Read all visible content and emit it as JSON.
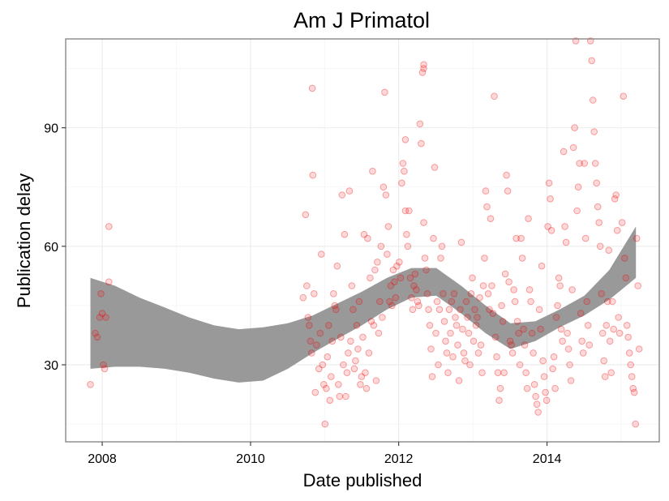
{
  "chart_data": {
    "type": "scatter",
    "title": "Am J Primatol",
    "xlabel": "Date published",
    "ylabel": "Publication delay",
    "xlim": [
      "2007-07-05",
      "2015-07-08"
    ],
    "ylim": [
      10.5,
      112.5
    ],
    "x_ticks": [
      "2008",
      "2010",
      "2012",
      "2014"
    ],
    "y_ticks": [
      "30",
      "60",
      "90"
    ],
    "grid": true,
    "point_color": "#ff0000",
    "band_color": "#999999",
    "points": [
      {
        "x": "2007-11-04",
        "y": 25
      },
      {
        "x": "2007-11-28",
        "y": 38
      },
      {
        "x": "2007-12-08",
        "y": 37
      },
      {
        "x": "2007-12-20",
        "y": 42
      },
      {
        "x": "2007-12-26",
        "y": 48
      },
      {
        "x": "2008-01-01",
        "y": 43
      },
      {
        "x": "2008-01-07",
        "y": 30
      },
      {
        "x": "2008-01-13",
        "y": 29
      },
      {
        "x": "2008-01-19",
        "y": 42
      },
      {
        "x": "2008-02-03",
        "y": 51
      },
      {
        "x": "2008-02-03",
        "y": 65
      },
      {
        "x": "2010-09-17",
        "y": 47
      },
      {
        "x": "2010-09-29",
        "y": 68
      },
      {
        "x": "2010-10-05",
        "y": 50
      },
      {
        "x": "2010-10-11",
        "y": 42
      },
      {
        "x": "2010-10-17",
        "y": 40
      },
      {
        "x": "2010-10-23",
        "y": 36
      },
      {
        "x": "2010-10-29",
        "y": 33
      },
      {
        "x": "2010-11-01",
        "y": 100
      },
      {
        "x": "2010-11-04",
        "y": 78
      },
      {
        "x": "2010-11-10",
        "y": 48
      },
      {
        "x": "2010-11-16",
        "y": 23
      },
      {
        "x": "2010-11-22",
        "y": 35
      },
      {
        "x": "2010-12-04",
        "y": 29
      },
      {
        "x": "2010-12-10",
        "y": 38
      },
      {
        "x": "2010-12-16",
        "y": 58
      },
      {
        "x": "2010-12-22",
        "y": 30
      },
      {
        "x": "2010-12-28",
        "y": 25
      },
      {
        "x": "2011-01-03",
        "y": 15
      },
      {
        "x": "2011-01-09",
        "y": 24
      },
      {
        "x": "2011-01-15",
        "y": 32
      },
      {
        "x": "2011-01-21",
        "y": 40
      },
      {
        "x": "2011-01-27",
        "y": 21
      },
      {
        "x": "2011-02-02",
        "y": 27
      },
      {
        "x": "2011-02-08",
        "y": 36
      },
      {
        "x": "2011-02-14",
        "y": 48
      },
      {
        "x": "2011-02-20",
        "y": 45
      },
      {
        "x": "2011-02-26",
        "y": 44
      },
      {
        "x": "2011-03-04",
        "y": 55
      },
      {
        "x": "2011-03-10",
        "y": 25
      },
      {
        "x": "2011-03-16",
        "y": 22
      },
      {
        "x": "2011-03-22",
        "y": 37
      },
      {
        "x": "2011-03-28",
        "y": 73
      },
      {
        "x": "2011-04-03",
        "y": 30
      },
      {
        "x": "2011-04-09",
        "y": 63
      },
      {
        "x": "2011-04-15",
        "y": 22
      },
      {
        "x": "2011-04-21",
        "y": 28
      },
      {
        "x": "2011-04-27",
        "y": 33
      },
      {
        "x": "2011-05-03",
        "y": 74
      },
      {
        "x": "2011-05-09",
        "y": 36
      },
      {
        "x": "2011-05-15",
        "y": 50
      },
      {
        "x": "2011-05-21",
        "y": 44
      },
      {
        "x": "2011-05-27",
        "y": 29
      },
      {
        "x": "2011-06-02",
        "y": 31
      },
      {
        "x": "2011-06-08",
        "y": 40
      },
      {
        "x": "2011-06-14",
        "y": 34
      },
      {
        "x": "2011-06-20",
        "y": 46
      },
      {
        "x": "2011-06-26",
        "y": 25
      },
      {
        "x": "2011-07-02",
        "y": 27
      },
      {
        "x": "2011-07-08",
        "y": 37
      },
      {
        "x": "2011-07-14",
        "y": 63
      },
      {
        "x": "2011-07-20",
        "y": 28
      },
      {
        "x": "2011-07-26",
        "y": 24
      },
      {
        "x": "2011-08-01",
        "y": 62
      },
      {
        "x": "2011-08-07",
        "y": 33
      },
      {
        "x": "2011-08-13",
        "y": 52
      },
      {
        "x": "2011-08-19",
        "y": 41
      },
      {
        "x": "2011-08-25",
        "y": 79
      },
      {
        "x": "2011-08-31",
        "y": 40
      },
      {
        "x": "2011-09-06",
        "y": 54
      },
      {
        "x": "2011-09-12",
        "y": 26
      },
      {
        "x": "2011-09-18",
        "y": 56
      },
      {
        "x": "2011-09-24",
        "y": 38
      },
      {
        "x": "2011-09-30",
        "y": 46
      },
      {
        "x": "2011-10-06",
        "y": 60
      },
      {
        "x": "2011-10-12",
        "y": 42
      },
      {
        "x": "2011-10-18",
        "y": 75
      },
      {
        "x": "2011-10-24",
        "y": 99
      },
      {
        "x": "2011-10-30",
        "y": 73
      },
      {
        "x": "2011-11-05",
        "y": 58
      },
      {
        "x": "2011-11-11",
        "y": 65
      },
      {
        "x": "2011-11-17",
        "y": 46
      },
      {
        "x": "2011-11-23",
        "y": 50
      },
      {
        "x": "2011-11-29",
        "y": 45
      },
      {
        "x": "2011-12-05",
        "y": 54
      },
      {
        "x": "2011-12-11",
        "y": 51
      },
      {
        "x": "2011-12-17",
        "y": 47
      },
      {
        "x": "2011-12-23",
        "y": 55
      },
      {
        "x": "2012-01-04",
        "y": 56
      },
      {
        "x": "2012-01-10",
        "y": 52
      },
      {
        "x": "2012-01-16",
        "y": 76
      },
      {
        "x": "2012-01-22",
        "y": 81
      },
      {
        "x": "2012-01-28",
        "y": 79
      },
      {
        "x": "2012-02-03",
        "y": 69
      },
      {
        "x": "2012-02-03",
        "y": 87
      },
      {
        "x": "2012-02-09",
        "y": 63
      },
      {
        "x": "2012-02-15",
        "y": 60
      },
      {
        "x": "2012-02-21",
        "y": 69
      },
      {
        "x": "2012-02-27",
        "y": 52
      },
      {
        "x": "2012-03-04",
        "y": 47
      },
      {
        "x": "2012-03-10",
        "y": 44
      },
      {
        "x": "2012-03-16",
        "y": 50
      },
      {
        "x": "2012-03-22",
        "y": 53
      },
      {
        "x": "2012-03-28",
        "y": 49
      },
      {
        "x": "2012-04-03",
        "y": 46
      },
      {
        "x": "2012-04-09",
        "y": 45
      },
      {
        "x": "2012-04-15",
        "y": 91
      },
      {
        "x": "2012-04-21",
        "y": 86
      },
      {
        "x": "2012-04-27",
        "y": 104
      },
      {
        "x": "2012-05-03",
        "y": 106
      },
      {
        "x": "2012-05-03",
        "y": 105
      },
      {
        "x": "2012-05-03",
        "y": 66
      },
      {
        "x": "2012-05-09",
        "y": 57
      },
      {
        "x": "2012-05-15",
        "y": 54
      },
      {
        "x": "2012-05-21",
        "y": 48
      },
      {
        "x": "2012-05-27",
        "y": 44
      },
      {
        "x": "2012-06-02",
        "y": 40
      },
      {
        "x": "2012-06-08",
        "y": 34
      },
      {
        "x": "2012-06-14",
        "y": 27
      },
      {
        "x": "2012-06-20",
        "y": 62
      },
      {
        "x": "2012-06-26",
        "y": 80
      },
      {
        "x": "2012-07-02",
        "y": 38
      },
      {
        "x": "2012-07-08",
        "y": 46
      },
      {
        "x": "2012-07-14",
        "y": 30
      },
      {
        "x": "2012-07-20",
        "y": 44
      },
      {
        "x": "2012-07-26",
        "y": 57
      },
      {
        "x": "2012-08-01",
        "y": 60
      },
      {
        "x": "2012-08-07",
        "y": 48
      },
      {
        "x": "2012-08-13",
        "y": 41
      },
      {
        "x": "2012-08-19",
        "y": 36
      },
      {
        "x": "2012-08-25",
        "y": 33
      },
      {
        "x": "2012-08-31",
        "y": 28
      },
      {
        "x": "2012-09-06",
        "y": 44
      },
      {
        "x": "2012-09-12",
        "y": 38
      },
      {
        "x": "2012-09-18",
        "y": 46
      },
      {
        "x": "2012-09-24",
        "y": 32
      },
      {
        "x": "2012-09-30",
        "y": 48
      },
      {
        "x": "2012-10-06",
        "y": 42
      },
      {
        "x": "2012-10-12",
        "y": 40
      },
      {
        "x": "2012-10-18",
        "y": 35
      },
      {
        "x": "2012-10-24",
        "y": 26
      },
      {
        "x": "2012-10-30",
        "y": 44
      },
      {
        "x": "2012-11-05",
        "y": 61
      },
      {
        "x": "2012-11-11",
        "y": 39
      },
      {
        "x": "2012-11-17",
        "y": 33
      },
      {
        "x": "2012-11-23",
        "y": 31
      },
      {
        "x": "2012-11-29",
        "y": 46
      },
      {
        "x": "2012-12-05",
        "y": 42
      },
      {
        "x": "2012-12-11",
        "y": 38
      },
      {
        "x": "2012-12-17",
        "y": 30
      },
      {
        "x": "2012-12-23",
        "y": 48
      },
      {
        "x": "2012-12-29",
        "y": 52
      },
      {
        "x": "2013-01-04",
        "y": 36
      },
      {
        "x": "2013-01-10",
        "y": 44
      },
      {
        "x": "2013-01-16",
        "y": 40
      },
      {
        "x": "2013-01-22",
        "y": 42
      },
      {
        "x": "2013-01-28",
        "y": 33
      },
      {
        "x": "2013-02-03",
        "y": 47
      },
      {
        "x": "2013-02-09",
        "y": 35
      },
      {
        "x": "2013-02-15",
        "y": 28
      },
      {
        "x": "2013-02-21",
        "y": 50
      },
      {
        "x": "2013-02-27",
        "y": 57
      },
      {
        "x": "2013-03-05",
        "y": 74
      },
      {
        "x": "2013-03-11",
        "y": 70
      },
      {
        "x": "2013-03-17",
        "y": 48
      },
      {
        "x": "2013-03-23",
        "y": 44
      },
      {
        "x": "2013-03-29",
        "y": 67
      },
      {
        "x": "2013-04-04",
        "y": 50
      },
      {
        "x": "2013-04-10",
        "y": 43
      },
      {
        "x": "2013-04-16",
        "y": 98
      },
      {
        "x": "2013-04-22",
        "y": 37
      },
      {
        "x": "2013-04-28",
        "y": 32
      },
      {
        "x": "2013-05-04",
        "y": 28
      },
      {
        "x": "2013-05-10",
        "y": 21
      },
      {
        "x": "2013-05-16",
        "y": 24
      },
      {
        "x": "2013-05-22",
        "y": 45
      },
      {
        "x": "2013-05-28",
        "y": 41
      },
      {
        "x": "2013-06-03",
        "y": 28
      },
      {
        "x": "2013-06-09",
        "y": 53
      },
      {
        "x": "2013-06-15",
        "y": 78
      },
      {
        "x": "2013-06-21",
        "y": 74
      },
      {
        "x": "2013-06-27",
        "y": 51
      },
      {
        "x": "2013-07-03",
        "y": 36
      },
      {
        "x": "2013-07-09",
        "y": 35
      },
      {
        "x": "2013-07-15",
        "y": 33
      },
      {
        "x": "2013-07-21",
        "y": 49
      },
      {
        "x": "2013-07-27",
        "y": 46
      },
      {
        "x": "2013-08-02",
        "y": 62
      },
      {
        "x": "2013-08-08",
        "y": 41
      },
      {
        "x": "2013-08-14",
        "y": 38
      },
      {
        "x": "2013-08-20",
        "y": 30
      },
      {
        "x": "2013-08-26",
        "y": 62
      },
      {
        "x": "2013-09-01",
        "y": 57
      },
      {
        "x": "2013-09-07",
        "y": 39
      },
      {
        "x": "2013-09-13",
        "y": 35
      },
      {
        "x": "2013-09-19",
        "y": 28
      },
      {
        "x": "2013-09-25",
        "y": 24
      },
      {
        "x": "2013-10-01",
        "y": 67
      },
      {
        "x": "2013-10-07",
        "y": 49
      },
      {
        "x": "2013-10-13",
        "y": 46
      },
      {
        "x": "2013-10-19",
        "y": 38
      },
      {
        "x": "2013-10-25",
        "y": 33
      },
      {
        "x": "2013-10-31",
        "y": 25
      },
      {
        "x": "2013-11-06",
        "y": 22
      },
      {
        "x": "2013-11-12",
        "y": 20
      },
      {
        "x": "2013-11-18",
        "y": 18
      },
      {
        "x": "2013-11-24",
        "y": 44
      },
      {
        "x": "2013-11-30",
        "y": 39
      },
      {
        "x": "2013-12-06",
        "y": 55
      },
      {
        "x": "2013-12-12",
        "y": 31
      },
      {
        "x": "2013-12-18",
        "y": 27
      },
      {
        "x": "2013-12-24",
        "y": 23
      },
      {
        "x": "2013-12-30",
        "y": 21
      },
      {
        "x": "2014-01-05",
        "y": 65
      },
      {
        "x": "2014-01-11",
        "y": 76
      },
      {
        "x": "2014-01-17",
        "y": 72
      },
      {
        "x": "2014-01-23",
        "y": 64
      },
      {
        "x": "2014-01-29",
        "y": 29
      },
      {
        "x": "2014-02-04",
        "y": 32
      },
      {
        "x": "2014-02-10",
        "y": 24
      },
      {
        "x": "2014-02-16",
        "y": 42
      },
      {
        "x": "2014-02-22",
        "y": 45
      },
      {
        "x": "2014-02-28",
        "y": 52
      },
      {
        "x": "2014-03-06",
        "y": 50
      },
      {
        "x": "2014-03-12",
        "y": 39
      },
      {
        "x": "2014-03-18",
        "y": 36
      },
      {
        "x": "2014-03-24",
        "y": 84
      },
      {
        "x": "2014-03-30",
        "y": 65
      },
      {
        "x": "2014-04-05",
        "y": 61
      },
      {
        "x": "2014-04-11",
        "y": 38
      },
      {
        "x": "2014-04-17",
        "y": 34
      },
      {
        "x": "2014-04-23",
        "y": 30
      },
      {
        "x": "2014-04-29",
        "y": 26
      },
      {
        "x": "2014-05-05",
        "y": 49
      },
      {
        "x": "2014-05-11",
        "y": 85
      },
      {
        "x": "2014-05-17",
        "y": 90
      },
      {
        "x": "2014-05-23",
        "y": 112
      },
      {
        "x": "2014-05-29",
        "y": 69
      },
      {
        "x": "2014-06-04",
        "y": 75
      },
      {
        "x": "2014-06-10",
        "y": 81
      },
      {
        "x": "2014-06-16",
        "y": 43
      },
      {
        "x": "2014-06-22",
        "y": 36
      },
      {
        "x": "2014-06-28",
        "y": 33
      },
      {
        "x": "2014-07-04",
        "y": 81
      },
      {
        "x": "2014-07-10",
        "y": 62
      },
      {
        "x": "2014-07-16",
        "y": 46
      },
      {
        "x": "2014-07-22",
        "y": 40
      },
      {
        "x": "2014-07-28",
        "y": 35
      },
      {
        "x": "2014-08-03",
        "y": 112
      },
      {
        "x": "2014-08-09",
        "y": 107
      },
      {
        "x": "2014-08-15",
        "y": 97
      },
      {
        "x": "2014-08-21",
        "y": 89
      },
      {
        "x": "2014-08-27",
        "y": 81
      },
      {
        "x": "2014-09-02",
        "y": 76
      },
      {
        "x": "2014-09-08",
        "y": 70
      },
      {
        "x": "2014-09-14",
        "y": 66
      },
      {
        "x": "2014-09-20",
        "y": 60
      },
      {
        "x": "2014-09-26",
        "y": 48
      },
      {
        "x": "2014-10-02",
        "y": 38
      },
      {
        "x": "2014-10-08",
        "y": 31
      },
      {
        "x": "2014-10-14",
        "y": 27
      },
      {
        "x": "2014-10-20",
        "y": 40
      },
      {
        "x": "2014-10-26",
        "y": 46
      },
      {
        "x": "2014-11-01",
        "y": 59
      },
      {
        "x": "2014-11-07",
        "y": 36
      },
      {
        "x": "2014-11-13",
        "y": 28
      },
      {
        "x": "2014-11-19",
        "y": 46
      },
      {
        "x": "2014-11-25",
        "y": 39
      },
      {
        "x": "2014-12-01",
        "y": 72
      },
      {
        "x": "2014-12-07",
        "y": 73
      },
      {
        "x": "2014-12-13",
        "y": 64
      },
      {
        "x": "2014-12-19",
        "y": 42
      },
      {
        "x": "2014-12-25",
        "y": 38
      },
      {
        "x": "2015-01-06",
        "y": 66
      },
      {
        "x": "2015-01-12",
        "y": 98
      },
      {
        "x": "2015-01-18",
        "y": 57
      },
      {
        "x": "2015-01-24",
        "y": 52
      },
      {
        "x": "2015-01-30",
        "y": 40
      },
      {
        "x": "2015-02-05",
        "y": 37
      },
      {
        "x": "2015-02-11",
        "y": 33
      },
      {
        "x": "2015-02-17",
        "y": 30
      },
      {
        "x": "2015-02-23",
        "y": 27
      },
      {
        "x": "2015-03-01",
        "y": 24
      },
      {
        "x": "2015-03-07",
        "y": 23
      },
      {
        "x": "2015-03-13",
        "y": 15
      },
      {
        "x": "2015-03-19",
        "y": 62
      },
      {
        "x": "2015-03-25",
        "y": 50
      },
      {
        "x": "2015-03-31",
        "y": 34
      }
    ],
    "smooth_band": [
      {
        "x": "2007-11-04",
        "lo": 29,
        "hi": 52
      },
      {
        "x": "2008-03-04",
        "lo": 29.5,
        "hi": 50
      },
      {
        "x": "2008-07-04",
        "lo": 29.5,
        "hi": 47
      },
      {
        "x": "2008-11-04",
        "lo": 29,
        "hi": 44.5
      },
      {
        "x": "2009-03-04",
        "lo": 28,
        "hi": 42
      },
      {
        "x": "2009-07-04",
        "lo": 26.5,
        "hi": 40
      },
      {
        "x": "2009-11-04",
        "lo": 25.5,
        "hi": 39
      },
      {
        "x": "2010-03-04",
        "lo": 26,
        "hi": 39.5
      },
      {
        "x": "2010-07-04",
        "lo": 29,
        "hi": 40.5
      },
      {
        "x": "2010-11-04",
        "lo": 33,
        "hi": 42.5
      },
      {
        "x": "2011-03-04",
        "lo": 36.5,
        "hi": 45.5
      },
      {
        "x": "2011-07-04",
        "lo": 40,
        "hi": 48.5
      },
      {
        "x": "2011-11-04",
        "lo": 44,
        "hi": 52
      },
      {
        "x": "2012-03-04",
        "lo": 47,
        "hi": 54.5
      },
      {
        "x": "2012-07-04",
        "lo": 47.5,
        "hi": 54.5
      },
      {
        "x": "2012-11-04",
        "lo": 43,
        "hi": 50
      },
      {
        "x": "2013-03-04",
        "lo": 38,
        "hi": 45
      },
      {
        "x": "2013-07-04",
        "lo": 34,
        "hi": 40.5
      },
      {
        "x": "2013-11-04",
        "lo": 36,
        "hi": 41
      },
      {
        "x": "2014-03-04",
        "lo": 39.5,
        "hi": 44
      },
      {
        "x": "2014-07-04",
        "lo": 42.5,
        "hi": 47.5
      },
      {
        "x": "2014-11-04",
        "lo": 46.5,
        "hi": 54
      },
      {
        "x": "2015-03-15",
        "lo": 52,
        "hi": 65
      }
    ]
  }
}
